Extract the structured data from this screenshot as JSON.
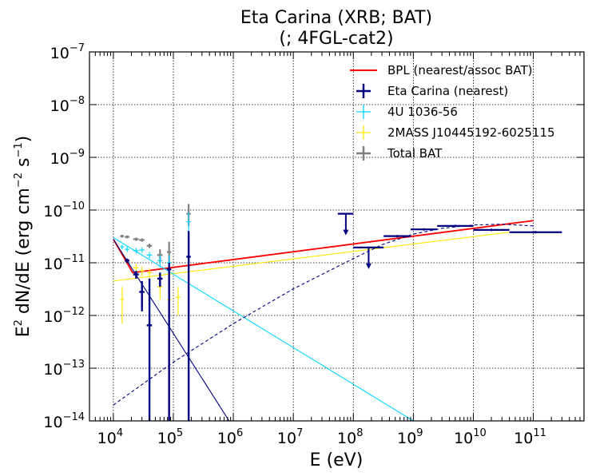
{
  "chart_data": {
    "type": "scatter",
    "title_line1": "Eta Carina (XRB; BAT)",
    "title_line2": "(; 4FGL-cat2)",
    "xlabel": "E (eV)",
    "ylabel_main": "E",
    "ylabel_sup1": "2",
    "ylabel_mid": " dN/dE (erg cm",
    "ylabel_sup2": "−2",
    "ylabel_mid2": " s",
    "ylabel_sup3": "−1",
    "ylabel_end": ")",
    "x_scale": "log",
    "y_scale": "log",
    "xlim": [
      4000,
      700000000000
    ],
    "ylim": [
      1e-14,
      1e-07
    ],
    "grid": true,
    "legend_position": "top-right",
    "x_ticks": [
      {
        "value": 10000,
        "base": "10",
        "exp": "4"
      },
      {
        "value": 100000,
        "base": "10",
        "exp": "5"
      },
      {
        "value": 1000000,
        "base": "10",
        "exp": "6"
      },
      {
        "value": 10000000,
        "base": "10",
        "exp": "7"
      },
      {
        "value": 100000000,
        "base": "10",
        "exp": "8"
      },
      {
        "value": 1000000000,
        "base": "10",
        "exp": "9"
      },
      {
        "value": 10000000000,
        "base": "10",
        "exp": "10"
      },
      {
        "value": 100000000000,
        "base": "10",
        "exp": "11"
      }
    ],
    "y_ticks": [
      {
        "value": 1e-14,
        "base": "10",
        "exp": "−14"
      },
      {
        "value": 1e-13,
        "base": "10",
        "exp": "−13"
      },
      {
        "value": 1e-12,
        "base": "10",
        "exp": "−12"
      },
      {
        "value": 1e-11,
        "base": "10",
        "exp": "−11"
      },
      {
        "value": 1e-10,
        "base": "10",
        "exp": "−10"
      },
      {
        "value": 1e-09,
        "base": "10",
        "exp": "−9"
      },
      {
        "value": 1e-08,
        "base": "10",
        "exp": "−8"
      },
      {
        "value": 1e-07,
        "base": "10",
        "exp": "−7"
      }
    ],
    "legend": [
      {
        "label": "BPL (nearest/assoc BAT)",
        "color": "#ff0000",
        "kind": "line"
      },
      {
        "label": "Eta Carina (nearest)",
        "color": "#000080",
        "kind": "errorbar"
      },
      {
        "label": "4U 1036-56",
        "color": "#00d7ff",
        "kind": "errorbar"
      },
      {
        "label": "2MASS J10445192-6025115",
        "color": "#ffe800",
        "kind": "errorbar"
      },
      {
        "label": "Total BAT",
        "color": "#808080",
        "kind": "errorbar"
      }
    ],
    "lines": [
      {
        "color": "#ff0000",
        "width": 1.8,
        "dash": "",
        "x": [
          10000,
          21000,
          100000000000
        ],
        "y": [
          2.8e-11,
          6.5e-12,
          6.3e-11
        ]
      },
      {
        "color": "#ffe800",
        "width": 1.1,
        "dash": "",
        "x": [
          10000,
          40000000000
        ],
        "y": [
          4.5e-12,
          3.8e-11
        ]
      },
      {
        "color": "#00d7ff",
        "width": 1.1,
        "dash": "",
        "x": [
          10000,
          1000000000
        ],
        "y": [
          3e-11,
          1e-14
        ]
      },
      {
        "color": "#000080",
        "width": 1.1,
        "dash": "",
        "x": [
          10000,
          850000
        ],
        "y": [
          2.8e-11,
          1e-14
        ]
      },
      {
        "color": "#000080",
        "width": 1.1,
        "dash": "4 3",
        "curve": true,
        "x": [
          10000,
          100000,
          1000000,
          10000000,
          100000000,
          300000000,
          1000000000,
          3000000000,
          10000000000,
          30000000000,
          100000000000
        ],
        "y": [
          2e-14,
          1.3e-13,
          7e-13,
          3.2e-12,
          1.2e-11,
          2.2e-11,
          3.5e-11,
          4.5e-11,
          5.2e-11,
          5.4e-11,
          5e-11
        ]
      }
    ],
    "series": [
      {
        "color": "#808080",
        "width": 2.2,
        "points": [
          {
            "x": 14000,
            "xlo": 13000,
            "xhi": 15000,
            "y": 3.2e-11,
            "ylo": 3e-11,
            "yhi": 3.4e-11
          },
          {
            "x": 17000,
            "xlo": 15500,
            "xhi": 18500,
            "y": 3.1e-11,
            "ylo": 2.9e-11,
            "yhi": 3.3e-11
          },
          {
            "x": 24000,
            "xlo": 21500,
            "xhi": 26500,
            "y": 2.8e-11,
            "ylo": 2.6e-11,
            "yhi": 3e-11
          },
          {
            "x": 30000,
            "xlo": 27000,
            "xhi": 33000,
            "y": 2.7e-11,
            "ylo": 2.5e-11,
            "yhi": 2.9e-11
          },
          {
            "x": 40000,
            "xlo": 36000,
            "xhi": 44000,
            "y": 2.1e-11,
            "ylo": 1.9e-11,
            "yhi": 2.3e-11
          },
          {
            "x": 60000,
            "xlo": 54000,
            "xhi": 66000,
            "y": 1.4e-11,
            "ylo": 1e-11,
            "yhi": 1.8e-11
          },
          {
            "x": 85000,
            "xlo": 78000,
            "xhi": 92000,
            "y": 1.6e-11,
            "ylo": 1e-11,
            "yhi": 2.5e-11
          },
          {
            "x": 180000,
            "xlo": 165000,
            "xhi": 195000,
            "y": 8.5e-11,
            "ylo": 5e-11,
            "yhi": 1.3e-10
          }
        ]
      },
      {
        "color": "#00d7ff",
        "width": 1.2,
        "points": [
          {
            "x": 14000,
            "xlo": 13000,
            "xhi": 15000,
            "y": 2e-11,
            "ylo": 1.8e-11,
            "yhi": 2.2e-11
          },
          {
            "x": 17000,
            "xlo": 15500,
            "xhi": 18500,
            "y": 1.8e-11,
            "ylo": 1.6e-11,
            "yhi": 2e-11
          },
          {
            "x": 24000,
            "xlo": 21500,
            "xhi": 26500,
            "y": 1.7e-11,
            "ylo": 1.5e-11,
            "yhi": 1.9e-11
          },
          {
            "x": 30000,
            "xlo": 27000,
            "xhi": 33000,
            "y": 1.75e-11,
            "ylo": 1.55e-11,
            "yhi": 1.95e-11
          },
          {
            "x": 40000,
            "xlo": 36000,
            "xhi": 44000,
            "y": 1.4e-11,
            "ylo": 1.2e-11,
            "yhi": 1.6e-11
          },
          {
            "x": 60000,
            "xlo": 54000,
            "xhi": 66000,
            "y": 1.1e-11,
            "ylo": 8e-12,
            "yhi": 1.4e-11
          },
          {
            "x": 85000,
            "xlo": 78000,
            "xhi": 92000,
            "y": 1e-11,
            "ylo": 1e-14,
            "yhi": 1.4e-11
          },
          {
            "x": 180000,
            "xlo": 165000,
            "xhi": 195000,
            "y": 6e-11,
            "ylo": 3e-11,
            "yhi": 9e-11
          }
        ]
      },
      {
        "color": "#ffe800",
        "width": 1.2,
        "points": [
          {
            "x": 14000,
            "xlo": 13000,
            "xhi": 15000,
            "y": 2e-12,
            "ylo": 7e-13,
            "yhi": 3.5e-12
          },
          {
            "x": 24000,
            "xlo": 21500,
            "xhi": 26500,
            "y": 8e-12,
            "ylo": 6.5e-12,
            "yhi": 9.5e-12
          },
          {
            "x": 30000,
            "xlo": 27000,
            "xhi": 33000,
            "y": 7e-12,
            "ylo": 5.5e-12,
            "yhi": 8.5e-12
          },
          {
            "x": 40000,
            "xlo": 36000,
            "xhi": 44000,
            "y": 6.5e-12,
            "ylo": 5e-12,
            "yhi": 8e-12
          },
          {
            "x": 60000,
            "xlo": 54000,
            "xhi": 66000,
            "y": 3.5e-12,
            "ylo": 2e-12,
            "yhi": 5e-12
          },
          {
            "x": 85000,
            "xlo": 78000,
            "xhi": 92000,
            "y": 2e-12,
            "ylo": 1e-12,
            "yhi": 3e-12
          },
          {
            "x": 120000,
            "xlo": 110000,
            "xhi": 130000,
            "y": 2.2e-12,
            "ylo": 1e-12,
            "yhi": 3.5e-12
          }
        ]
      },
      {
        "color": "#000080",
        "width": 2.4,
        "points": [
          {
            "x": 17000,
            "xlo": 15500,
            "xhi": 18500,
            "y": 1.1e-11,
            "ylo": 1e-11,
            "yhi": 1.2e-11
          },
          {
            "x": 24000,
            "xlo": 21500,
            "xhi": 26500,
            "y": 6e-12,
            "ylo": 5e-12,
            "yhi": 7e-12
          },
          {
            "x": 30000,
            "xlo": 27000,
            "xhi": 33000,
            "y": 2.8e-12,
            "ylo": 1.2e-12,
            "yhi": 4.5e-12
          },
          {
            "x": 40000,
            "xlo": 36000,
            "xhi": 44000,
            "y": 6.5e-13,
            "ylo": 1e-14,
            "yhi": 5e-12
          },
          {
            "x": 60000,
            "xlo": 54000,
            "xhi": 66000,
            "y": 5e-12,
            "ylo": 3.5e-12,
            "yhi": 6.5e-12
          },
          {
            "x": 85000,
            "xlo": 78000,
            "xhi": 92000,
            "y": 7.5e-12,
            "ylo": 1e-14,
            "yhi": 1e-11
          },
          {
            "x": 180000,
            "xlo": 165000,
            "xhi": 195000,
            "y": 1.3e-11,
            "ylo": 1e-14,
            "yhi": 4e-11
          }
        ]
      }
    ],
    "upper_limits": [
      {
        "color": "#000080",
        "x": 75000000,
        "xlo": 55000000,
        "xhi": 100000000,
        "y": 8.5e-11
      },
      {
        "color": "#000080",
        "x": 180000000,
        "xlo": 100000000,
        "xhi": 320000000,
        "y": 1.95e-11
      }
    ],
    "bins": [
      {
        "color": "#000080",
        "xlo": 320000000,
        "xhi": 900000000,
        "y": 3.2e-11
      },
      {
        "color": "#000080",
        "xlo": 900000000,
        "xhi": 2500000000,
        "y": 4.3e-11
      },
      {
        "color": "#000080",
        "xlo": 2500000000,
        "xhi": 10000000000,
        "y": 5e-11
      },
      {
        "color": "#000080",
        "xlo": 10000000000,
        "xhi": 40000000000,
        "y": 4.2e-11
      },
      {
        "color": "#000080",
        "xlo": 40000000000,
        "xhi": 300000000000,
        "y": 3.8e-11
      }
    ]
  }
}
